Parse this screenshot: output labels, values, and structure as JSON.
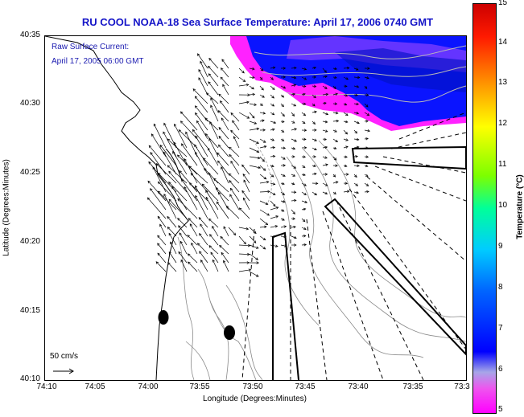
{
  "title": "RU COOL  NOAA-18  Sea Surface Temperature:  April 17, 2006 0740 GMT",
  "current_label": {
    "line1": "Raw Surface Current:",
    "line2": "April 17, 2005 06:00 GMT"
  },
  "scale_label": "50 cm/s",
  "axes": {
    "xlabel": "Longitude (Degrees:Minutes)",
    "ylabel": "Latitude (Degrees:Minutes)",
    "xticks": [
      "74:10",
      "74:05",
      "74:00",
      "73:55",
      "73:50",
      "73:45",
      "73:40",
      "73:35",
      "73:3"
    ],
    "yticks": [
      "40:35",
      "40:30",
      "40:25",
      "40:20",
      "40:15",
      "40:10"
    ]
  },
  "colorbar": {
    "label": "Temperature (°C)",
    "ticks": [
      "15",
      "14",
      "13",
      "12",
      "11",
      "10",
      "9",
      "8",
      "7",
      "6",
      "5"
    ],
    "range": [
      5,
      15
    ]
  },
  "colors": {
    "title": "#1515c8",
    "sst_warm": "#ff00ff",
    "sst_cold": "#0000ff"
  }
}
